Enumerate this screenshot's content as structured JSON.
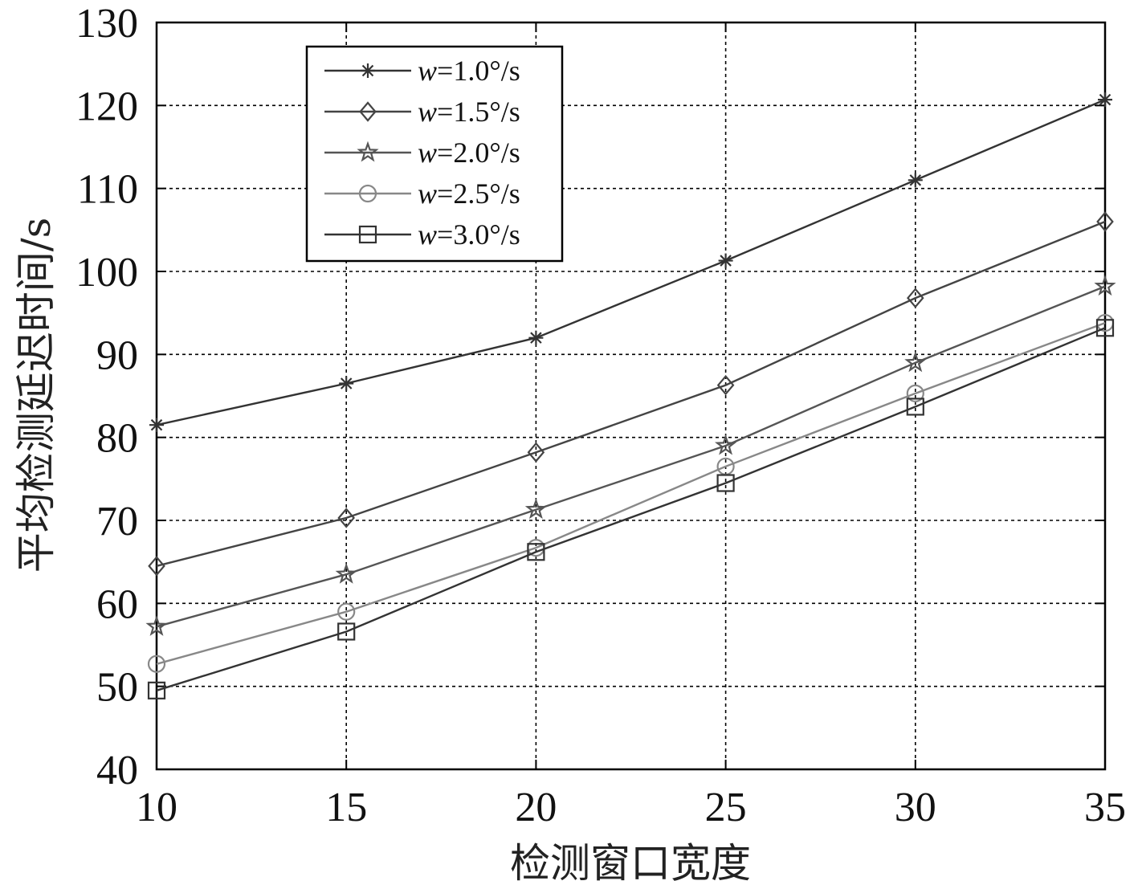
{
  "chart_data": {
    "type": "line",
    "title": "",
    "xlabel": "检测窗口宽度",
    "ylabel": "平均检测延迟时间/s",
    "x": [
      10,
      15,
      20,
      25,
      30,
      35
    ],
    "xlim": [
      10,
      35
    ],
    "ylim": [
      40,
      130
    ],
    "xticks": [
      "10",
      "15",
      "20",
      "25",
      "30",
      "35"
    ],
    "yticks": [
      "40",
      "50",
      "60",
      "70",
      "80",
      "90",
      "100",
      "110",
      "120",
      "130"
    ],
    "grid": true,
    "legend_position": "top-left",
    "series": [
      {
        "name": "w=1.0°/s",
        "marker": "asterisk",
        "color": "#333333",
        "values": [
          81.5,
          86.5,
          92.0,
          101.3,
          111.0,
          120.7
        ]
      },
      {
        "name": "w=1.5°/s",
        "marker": "diamond",
        "color": "#444444",
        "values": [
          64.5,
          70.3,
          78.2,
          86.3,
          96.8,
          106.0
        ]
      },
      {
        "name": "w=2.0°/s",
        "marker": "star",
        "color": "#555555",
        "values": [
          57.2,
          63.5,
          71.3,
          79.0,
          89.0,
          98.2
        ]
      },
      {
        "name": "w=2.5°/s",
        "marker": "circle",
        "color": "#888888",
        "values": [
          52.7,
          59.0,
          66.7,
          76.5,
          85.3,
          93.8
        ]
      },
      {
        "name": "w=3.0°/s",
        "marker": "square",
        "color": "#333333",
        "values": [
          49.5,
          56.6,
          66.2,
          74.5,
          83.7,
          93.2
        ]
      }
    ],
    "legend": [
      {
        "prefix": "w",
        "rest": "=1.0°/s"
      },
      {
        "prefix": "w",
        "rest": "=1.5°/s"
      },
      {
        "prefix": "w",
        "rest": "=2.0°/s"
      },
      {
        "prefix": "w",
        "rest": "=2.5°/s"
      },
      {
        "prefix": "w",
        "rest": "=3.0°/s"
      }
    ]
  }
}
